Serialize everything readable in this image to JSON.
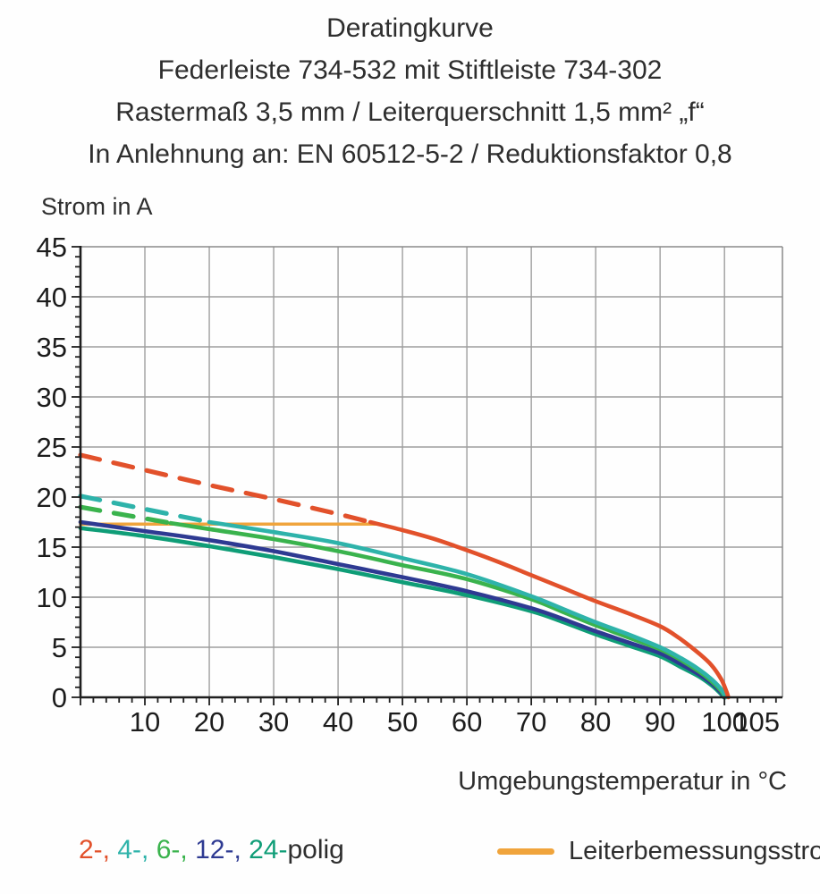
{
  "chart_data": {
    "type": "line",
    "title_lines": [
      "Deratingkurve",
      "Federleiste 734-532 mit Stiftleiste 734-302",
      "Rastermaß 3,5 mm / Leiterquerschnitt 1,5 mm² „f“",
      "In Anlehnung an: EN 60512-5-2 / Reduktionsfaktor 0,8"
    ],
    "xlabel": "Umgebungstemperatur in °C",
    "ylabel": "Strom in A",
    "xlim": [
      0,
      109
    ],
    "ylim": [
      0,
      45
    ],
    "grid": true,
    "x_ticks_labeled": [
      10,
      20,
      30,
      40,
      50,
      60,
      70,
      80,
      90,
      100,
      105
    ],
    "x_gridlines": [
      10,
      20,
      30,
      40,
      50,
      60,
      70,
      80,
      90,
      100
    ],
    "y_ticks_labeled": [
      0,
      5,
      10,
      15,
      20,
      25,
      30,
      35,
      40,
      45
    ],
    "y_gridlines": [
      5,
      10,
      15,
      20,
      25,
      30,
      35,
      40
    ],
    "x_minor_step": 2,
    "y_minor_step": 1,
    "legend_position": "bottom",
    "series": [
      {
        "name": "2-polig",
        "color": "#e2512b",
        "segments": [
          {
            "style": "dashed",
            "points": [
              [
                0,
                24.2
              ],
              [
                10,
                22.7
              ],
              [
                20,
                21.2
              ],
              [
                30,
                19.8
              ],
              [
                40,
                18.3
              ],
              [
                45,
                17.5
              ]
            ]
          },
          {
            "style": "solid",
            "points": [
              [
                45,
                17.5
              ],
              [
                50,
                16.7
              ],
              [
                55,
                15.8
              ],
              [
                60,
                14.7
              ],
              [
                65,
                13.5
              ],
              [
                70,
                12.2
              ],
              [
                75,
                10.9
              ],
              [
                80,
                9.6
              ],
              [
                85,
                8.4
              ],
              [
                90,
                7.1
              ],
              [
                93,
                5.9
              ],
              [
                96,
                4.4
              ],
              [
                98,
                3.2
              ],
              [
                99.5,
                1.8
              ],
              [
                100.3,
                0.6
              ],
              [
                100.6,
                0
              ]
            ]
          }
        ]
      },
      {
        "name": "4-polig",
        "color": "#2eb3aa",
        "segments": [
          {
            "style": "dashed",
            "points": [
              [
                0,
                20.1
              ],
              [
                10,
                18.8
              ],
              [
                20,
                17.5
              ]
            ]
          },
          {
            "style": "solid",
            "points": [
              [
                20,
                17.5
              ],
              [
                30,
                16.5
              ],
              [
                40,
                15.4
              ],
              [
                50,
                13.9
              ],
              [
                60,
                12.3
              ],
              [
                70,
                10.1
              ],
              [
                75,
                8.8
              ],
              [
                80,
                7.5
              ],
              [
                85,
                6.3
              ],
              [
                90,
                5.0
              ],
              [
                93,
                4.0
              ],
              [
                96,
                2.8
              ],
              [
                98,
                1.8
              ],
              [
                99.5,
                0.8
              ],
              [
                100.2,
                0
              ]
            ]
          }
        ]
      },
      {
        "name": "6-polig",
        "color": "#3ab34d",
        "segments": [
          {
            "style": "dashed",
            "points": [
              [
                0,
                19.0
              ],
              [
                7,
                18.2
              ],
              [
                14,
                17.4
              ]
            ]
          },
          {
            "style": "solid",
            "points": [
              [
                14,
                17.4
              ],
              [
                20,
                16.8
              ],
              [
                30,
                15.8
              ],
              [
                40,
                14.6
              ],
              [
                50,
                13.2
              ],
              [
                60,
                11.8
              ],
              [
                70,
                9.8
              ],
              [
                75,
                8.5
              ],
              [
                80,
                7.2
              ],
              [
                85,
                6.0
              ],
              [
                90,
                4.8
              ],
              [
                93,
                3.8
              ],
              [
                96,
                2.6
              ],
              [
                98,
                1.6
              ],
              [
                99.4,
                0.7
              ],
              [
                100.1,
                0
              ]
            ]
          }
        ]
      },
      {
        "name": "12-polig",
        "color": "#2e3a92",
        "segments": [
          {
            "style": "solid",
            "points": [
              [
                0,
                17.5
              ],
              [
                10,
                16.6
              ],
              [
                20,
                15.7
              ],
              [
                30,
                14.6
              ],
              [
                40,
                13.3
              ],
              [
                50,
                12.0
              ],
              [
                60,
                10.6
              ],
              [
                70,
                8.9
              ],
              [
                75,
                7.8
              ],
              [
                80,
                6.6
              ],
              [
                85,
                5.5
              ],
              [
                90,
                4.4
              ],
              [
                93,
                3.4
              ],
              [
                96,
                2.3
              ],
              [
                98,
                1.4
              ],
              [
                99.3,
                0.6
              ],
              [
                100,
                0
              ]
            ]
          }
        ]
      },
      {
        "name": "24-polig",
        "color": "#0f9d77",
        "segments": [
          {
            "style": "solid",
            "points": [
              [
                0,
                16.9
              ],
              [
                10,
                16.1
              ],
              [
                20,
                15.1
              ],
              [
                30,
                14.0
              ],
              [
                40,
                12.8
              ],
              [
                50,
                11.5
              ],
              [
                60,
                10.2
              ],
              [
                70,
                8.6
              ],
              [
                75,
                7.5
              ],
              [
                80,
                6.3
              ],
              [
                85,
                5.2
              ],
              [
                90,
                4.1
              ],
              [
                93,
                3.1
              ],
              [
                96,
                2.1
              ],
              [
                98,
                1.2
              ],
              [
                99.2,
                0.5
              ],
              [
                99.9,
                0
              ]
            ]
          }
        ]
      },
      {
        "name": "Leiterbemessungsstrom",
        "color": "#f0a43c",
        "width": 3.5,
        "segments": [
          {
            "style": "solid",
            "points": [
              [
                0,
                17.3
              ],
              [
                46,
                17.3
              ]
            ]
          }
        ]
      }
    ]
  },
  "legend": {
    "pole_labels": [
      {
        "text": "2-, ",
        "color": "#e2512b"
      },
      {
        "text": "4-, ",
        "color": "#2eb3aa"
      },
      {
        "text": "6-, ",
        "color": "#3ab34d"
      },
      {
        "text": "12-, ",
        "color": "#2e3a92"
      },
      {
        "text": "24-",
        "color": "#0f9d77"
      }
    ],
    "pole_suffix": "polig",
    "conductor_label": "Leiterbemessungsstrom",
    "conductor_color": "#f0a43c"
  },
  "colors": {
    "grid": "#9e9e9e",
    "frame": "#8a8a8a",
    "axis": "#1f1f1f",
    "tick_text": "#1c1c1c",
    "text": "#2e2e2e",
    "background": "#fefefe"
  }
}
